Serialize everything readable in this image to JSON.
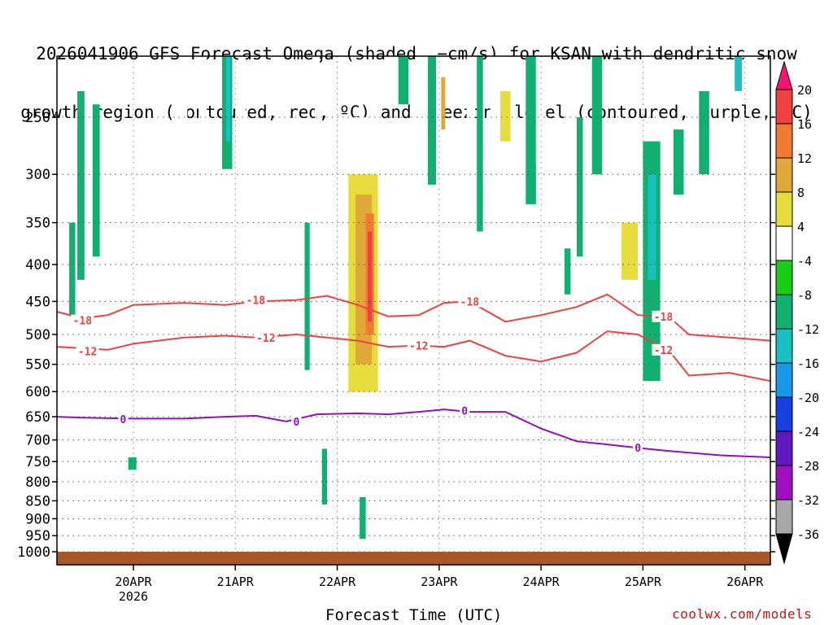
{
  "title_lines": [
    "2026041906 GFS Forecast Omega (shaded, −cm/s) for KSAN with dendritic snow",
    "growth region (contoured, red, ºC) and freezing level (contoured, purple, ºC)"
  ],
  "xlabel": "Forecast Time (UTC)",
  "credit": "coolwx.com/models",
  "chart_data": {
    "type": "heatmap",
    "y_ticks": [
      250,
      300,
      350,
      400,
      450,
      500,
      550,
      600,
      650,
      700,
      750,
      800,
      850,
      900,
      950,
      1000
    ],
    "y_tick_labels": [
      "250",
      "300",
      "350",
      "400",
      "450",
      "500",
      "550",
      "600",
      "650",
      "700",
      "750",
      "800",
      "850",
      "900",
      "950",
      "1000"
    ],
    "x_ticks": [
      1.75,
      2.75,
      3.75,
      4.75,
      5.75,
      6.75,
      7.75
    ],
    "x_tick_labels": [
      "20APR",
      "21APR",
      "22APR",
      "23APR",
      "24APR",
      "25APR",
      "26APR"
    ],
    "x_tick_sub": "2026",
    "x_range": [
      1.0,
      8.0
    ],
    "colorbar": {
      "labels": [
        "20",
        "16",
        "12",
        "8",
        "4",
        "-4",
        "-8",
        "-12",
        "-16",
        "-20",
        "-24",
        "-28",
        "-32",
        "-36"
      ],
      "colors": [
        "#f21870",
        "#f04040",
        "#f07a30",
        "#e0a838",
        "#e6dc3c",
        "#ffffff",
        "#18cc18",
        "#10b070",
        "#18c0c0",
        "#1898e8",
        "#1840e0",
        "#6018c0",
        "#a010c0",
        "#a8a8a8",
        "#000000"
      ]
    },
    "contours": [
      {
        "label": "-18",
        "color": "#f04040",
        "values": [
          [
            1.0,
            465
          ],
          [
            1.25,
            475
          ],
          [
            1.5,
            470
          ],
          [
            1.75,
            455
          ],
          [
            2.25,
            452
          ],
          [
            2.65,
            455
          ],
          [
            2.95,
            450
          ],
          [
            3.35,
            448
          ],
          [
            3.65,
            442
          ],
          [
            3.95,
            455
          ],
          [
            4.25,
            472
          ],
          [
            4.55,
            470
          ],
          [
            4.8,
            452
          ],
          [
            5.05,
            450
          ],
          [
            5.4,
            480
          ],
          [
            5.75,
            470
          ],
          [
            6.1,
            458
          ],
          [
            6.4,
            440
          ],
          [
            6.7,
            470
          ],
          [
            7.0,
            472
          ],
          [
            7.2,
            500
          ],
          [
            7.6,
            505
          ],
          [
            8.0,
            510
          ]
        ]
      },
      {
        "label": "-12",
        "color": "#f04040",
        "values": [
          [
            1.0,
            520
          ],
          [
            1.5,
            525
          ],
          [
            1.75,
            515
          ],
          [
            2.25,
            505
          ],
          [
            2.65,
            502
          ],
          [
            2.95,
            505
          ],
          [
            3.35,
            500
          ],
          [
            3.65,
            505
          ],
          [
            3.95,
            510
          ],
          [
            4.25,
            520
          ],
          [
            4.55,
            518
          ],
          [
            4.8,
            520
          ],
          [
            5.05,
            510
          ],
          [
            5.4,
            535
          ],
          [
            5.75,
            545
          ],
          [
            6.1,
            530
          ],
          [
            6.4,
            495
          ],
          [
            6.7,
            500
          ],
          [
            7.0,
            525
          ],
          [
            7.2,
            570
          ],
          [
            7.6,
            565
          ],
          [
            8.0,
            580
          ]
        ]
      },
      {
        "label": "0",
        "color": "#9010c0",
        "values": [
          [
            1.0,
            650
          ],
          [
            1.25,
            652
          ],
          [
            1.75,
            654
          ],
          [
            2.25,
            654
          ],
          [
            2.65,
            650
          ],
          [
            2.95,
            648
          ],
          [
            3.25,
            660
          ],
          [
            3.55,
            645
          ],
          [
            3.95,
            643
          ],
          [
            4.25,
            645
          ],
          [
            4.55,
            640
          ],
          [
            4.8,
            635
          ],
          [
            5.05,
            640
          ],
          [
            5.4,
            640
          ],
          [
            5.75,
            675
          ],
          [
            6.1,
            703
          ],
          [
            6.4,
            710
          ],
          [
            6.7,
            718
          ],
          [
            7.0,
            725
          ],
          [
            7.5,
            735
          ],
          [
            8.0,
            740
          ]
        ]
      }
    ],
    "label_positions": [
      {
        "label": "-18",
        "x": 1.25,
        "p": 478
      },
      {
        "label": "-18",
        "x": 2.95,
        "p": 448
      },
      {
        "label": "-18",
        "x": 5.05,
        "p": 450
      },
      {
        "label": "-18",
        "x": 6.95,
        "p": 472
      },
      {
        "label": "-12",
        "x": 1.3,
        "p": 527
      },
      {
        "label": "-12",
        "x": 3.05,
        "p": 505
      },
      {
        "label": "-12",
        "x": 4.55,
        "p": 518
      },
      {
        "label": "-12",
        "x": 6.95,
        "p": 525
      },
      {
        "label": "0",
        "x": 1.65,
        "p": 655
      },
      {
        "label": "0",
        "x": 3.35,
        "p": 660
      },
      {
        "label": "0",
        "x": 5.0,
        "p": 637
      },
      {
        "label": "0",
        "x": 6.7,
        "p": 717
      }
    ],
    "shading": [
      {
        "x": [
          1.2,
          1.27
        ],
        "p": [
          230,
          420
        ],
        "level": "-8"
      },
      {
        "x": [
          1.35,
          1.42
        ],
        "p": [
          240,
          390
        ],
        "level": "-8"
      },
      {
        "x": [
          1.12,
          1.18
        ],
        "p": [
          350,
          470
        ],
        "level": "-8"
      },
      {
        "x": [
          1.7,
          1.78
        ],
        "p": [
          740,
          770
        ],
        "level": "-8"
      },
      {
        "x": [
          2.15,
          2.28
        ],
        "p": [
          230,
          345
        ],
        "level": "4"
      },
      {
        "x": [
          2.39,
          2.47
        ],
        "p": [
          200,
          260
        ],
        "level": "4"
      },
      {
        "x": [
          2.62,
          2.72
        ],
        "p": [
          180,
          295
        ],
        "level": "-8"
      },
      {
        "x": [
          2.66,
          2.7
        ],
        "p": [
          200,
          270
        ],
        "level": "-12"
      },
      {
        "x": [
          2.78,
          2.85
        ],
        "p": [
          200,
          300
        ],
        "level": "4"
      },
      {
        "x": [
          3.12,
          3.18
        ],
        "p": [
          300,
          440
        ],
        "level": "4"
      },
      {
        "x": [
          3.43,
          3.48
        ],
        "p": [
          350,
          560
        ],
        "level": "-8"
      },
      {
        "x": [
          3.53,
          3.58
        ],
        "p": [
          180,
          310
        ],
        "level": "4"
      },
      {
        "x": [
          3.6,
          3.65
        ],
        "p": [
          720,
          860
        ],
        "level": "-8"
      },
      {
        "x": [
          3.97,
          4.03
        ],
        "p": [
          840,
          960
        ],
        "level": "-8"
      },
      {
        "x": [
          3.62,
          3.88
        ],
        "p": [
          380,
          640
        ],
        "level": "4"
      },
      {
        "x": [
          3.72,
          4.2
        ],
        "p": [
          250,
          700
        ],
        "level": "4"
      },
      {
        "x": [
          3.86,
          4.15
        ],
        "p": [
          300,
          600
        ],
        "level": "8"
      },
      {
        "x": [
          3.93,
          4.09
        ],
        "p": [
          320,
          550
        ],
        "level": "12"
      },
      {
        "x": [
          4.03,
          4.11
        ],
        "p": [
          340,
          500
        ],
        "level": "16"
      },
      {
        "x": [
          4.05,
          4.09
        ],
        "p": [
          360,
          480
        ],
        "level": "20"
      },
      {
        "x": [
          4.23,
          4.35
        ],
        "p": [
          175,
          240
        ],
        "level": "4"
      },
      {
        "x": [
          4.35,
          4.45
        ],
        "p": [
          170,
          240
        ],
        "level": "-8"
      },
      {
        "x": [
          4.55,
          4.65
        ],
        "p": [
          180,
          290
        ],
        "level": "4"
      },
      {
        "x": [
          4.64,
          4.72
        ],
        "p": [
          175,
          310
        ],
        "level": "-8"
      },
      {
        "x": [
          4.72,
          4.8
        ],
        "p": [
          200,
          270
        ],
        "level": "4"
      },
      {
        "x": [
          4.77,
          4.81
        ],
        "p": [
          220,
          260
        ],
        "level": "12"
      },
      {
        "x": [
          4.9,
          4.94
        ],
        "p": [
          450,
          940
        ],
        "level": "4"
      },
      {
        "x": [
          5.02,
          5.08
        ],
        "p": [
          200,
          330
        ],
        "level": "4"
      },
      {
        "x": [
          5.12,
          5.18
        ],
        "p": [
          200,
          360
        ],
        "level": "-8"
      },
      {
        "x": [
          5.25,
          5.5
        ],
        "p": [
          180,
          300
        ],
        "level": "4"
      },
      {
        "x": [
          5.35,
          5.45
        ],
        "p": [
          230,
          270
        ],
        "level": "8"
      },
      {
        "x": [
          5.6,
          5.7
        ],
        "p": [
          180,
          330
        ],
        "level": "-8"
      },
      {
        "x": [
          5.7,
          5.8
        ],
        "p": [
          200,
          290
        ],
        "level": "4"
      },
      {
        "x": [
          5.98,
          6.04
        ],
        "p": [
          380,
          440
        ],
        "level": "-8"
      },
      {
        "x": [
          6.1,
          6.16
        ],
        "p": [
          250,
          390
        ],
        "level": "-8"
      },
      {
        "x": [
          6.25,
          6.35
        ],
        "p": [
          180,
          300
        ],
        "level": "-8"
      },
      {
        "x": [
          6.32,
          6.36
        ],
        "p": [
          700,
          780
        ],
        "level": "4"
      },
      {
        "x": [
          6.49,
          6.56
        ],
        "p": [
          320,
          400
        ],
        "level": "4"
      },
      {
        "x": [
          6.5,
          6.75
        ],
        "p": [
          330,
          590
        ],
        "level": "4"
      },
      {
        "x": [
          6.54,
          6.7
        ],
        "p": [
          350,
          420
        ],
        "level": "8"
      },
      {
        "x": [
          6.75,
          6.92
        ],
        "p": [
          270,
          580
        ],
        "level": "-8"
      },
      {
        "x": [
          6.8,
          6.88
        ],
        "p": [
          300,
          420
        ],
        "level": "-12"
      },
      {
        "x": [
          6.92,
          6.98
        ],
        "p": [
          420,
          500
        ],
        "level": "4"
      },
      {
        "x": [
          7.05,
          7.15
        ],
        "p": [
          260,
          320
        ],
        "level": "-8"
      },
      {
        "x": [
          7.3,
          7.4
        ],
        "p": [
          230,
          300
        ],
        "level": "-8"
      },
      {
        "x": [
          7.42,
          7.5
        ],
        "p": [
          400,
          620
        ],
        "level": "4"
      },
      {
        "x": [
          7.5,
          7.6
        ],
        "p": [
          380,
          480
        ],
        "level": "4"
      },
      {
        "x": [
          7.65,
          7.72
        ],
        "p": [
          190,
          230
        ],
        "level": "-12"
      },
      {
        "x": [
          7.9,
          7.95
        ],
        "p": [
          250,
          290
        ],
        "level": "4"
      }
    ]
  }
}
